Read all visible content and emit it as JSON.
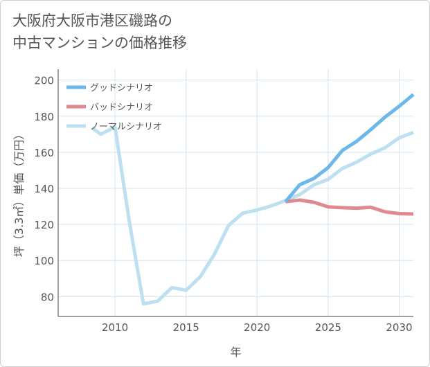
{
  "title_lines": [
    "大阪府大阪市港区磯路の",
    "中古マンションの価格推移"
  ],
  "chart_data": {
    "type": "line",
    "xlabel": "年",
    "ylabel": "坪（3.3㎡）単価（万円）",
    "xlim": [
      2006,
      2031
    ],
    "ylim": [
      69,
      206
    ],
    "x_ticks": [
      2010,
      2015,
      2020,
      2025,
      2030
    ],
    "y_ticks": [
      80,
      100,
      120,
      140,
      160,
      180,
      200
    ],
    "grid": true,
    "legend_position": "top-left",
    "series": [
      {
        "name": "グッドシナリオ",
        "color": "#6cb8ea",
        "x": [
          2022,
          2023,
          2024,
          2025,
          2026,
          2027,
          2028,
          2029,
          2030,
          2031
        ],
        "values": [
          132.6,
          142,
          145.5,
          151.5,
          161,
          166,
          172.5,
          179.5,
          185.5,
          192
        ]
      },
      {
        "name": "バッドシナリオ",
        "color": "#df8a90",
        "x": [
          2022,
          2023,
          2024,
          2025,
          2026,
          2027,
          2028,
          2029,
          2030,
          2031
        ],
        "values": [
          132.6,
          133.5,
          132.3,
          129.7,
          129.3,
          129,
          129.5,
          127,
          126,
          125.8
        ]
      },
      {
        "name": "ノーマルシナリオ",
        "color": "#bde0f1",
        "x": [
          2008.4,
          2009,
          2010,
          2011,
          2012,
          2013,
          2014,
          2015,
          2016,
          2017,
          2018,
          2019,
          2020,
          2021,
          2022,
          2023,
          2024,
          2025,
          2026,
          2027,
          2028,
          2029,
          2030,
          2031
        ],
        "values": [
          173.5,
          170,
          174,
          122,
          76,
          77.5,
          85,
          83.5,
          91,
          103.5,
          119.5,
          126.3,
          128,
          130.3,
          133.2,
          136.5,
          142,
          145,
          151,
          154.5,
          159,
          162.5,
          168,
          171
        ]
      }
    ]
  }
}
